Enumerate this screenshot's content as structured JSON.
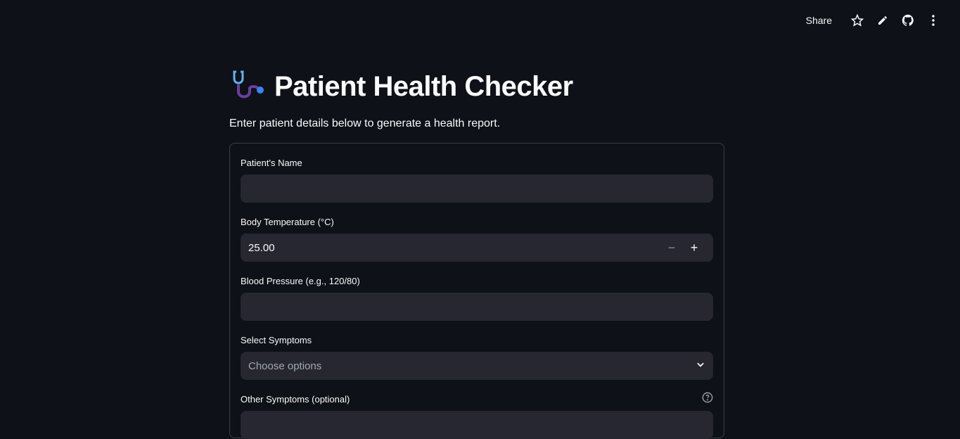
{
  "header": {
    "share_label": "Share",
    "icons": [
      "star-icon",
      "pencil-icon",
      "github-icon",
      "more-vertical-icon"
    ]
  },
  "page": {
    "title": "Patient Health Checker",
    "title_icon": "stethoscope-icon",
    "subtitle": "Enter patient details below to generate a health report."
  },
  "form": {
    "name": {
      "label": "Patient's Name",
      "value": ""
    },
    "temperature": {
      "label": "Body Temperature (°C)",
      "value": "25.00",
      "minus": "−",
      "plus": "+"
    },
    "bp": {
      "label": "Blood Pressure (e.g., 120/80)",
      "value": ""
    },
    "symptoms": {
      "label": "Select Symptoms",
      "placeholder": "Choose options"
    },
    "other": {
      "label": "Other Symptoms (optional)",
      "help_icon": "help-circle-icon"
    }
  }
}
